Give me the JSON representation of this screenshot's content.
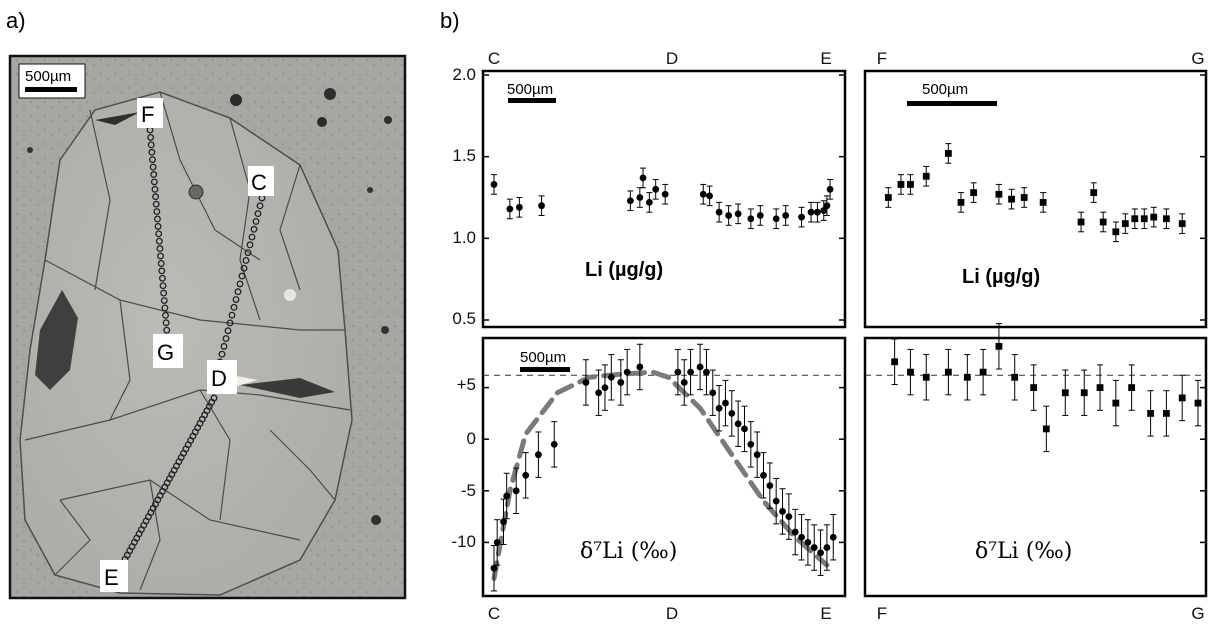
{
  "panel_a": {
    "label": "a)",
    "scale_bar": "500µm",
    "markers": {
      "F": "F",
      "C": "C",
      "G": "G",
      "D": "D",
      "E": "E"
    }
  },
  "panel_b": {
    "label": "b)",
    "scale_bars": {
      "top_left": "500µm",
      "top_right": "500µm",
      "bottom_left": "500µm"
    }
  },
  "chart_data": [
    {
      "type": "scatter",
      "panel": "top-left",
      "inner_label": "Li (µg/g)",
      "xticks": [
        "C",
        "D",
        "E"
      ],
      "ylim": [
        0.5,
        2.0
      ],
      "yticks": [
        "2.0",
        "1.5",
        "1.0",
        "0.5"
      ],
      "x": [
        0.0,
        0.05,
        0.08,
        0.15,
        0.43,
        0.46,
        0.47,
        0.49,
        0.51,
        0.54,
        0.66,
        0.68,
        0.71,
        0.74,
        0.77,
        0.81,
        0.84,
        0.89,
        0.92,
        0.97,
        1.0,
        1.02,
        1.04,
        1.05,
        1.06
      ],
      "y": [
        1.33,
        1.18,
        1.19,
        1.2,
        1.23,
        1.25,
        1.37,
        1.22,
        1.3,
        1.27,
        1.27,
        1.26,
        1.16,
        1.14,
        1.15,
        1.12,
        1.14,
        1.12,
        1.14,
        1.13,
        1.16,
        1.16,
        1.17,
        1.2,
        1.3
      ],
      "yerr": 0.06
    },
    {
      "type": "scatter",
      "panel": "top-right",
      "inner_label": "Li (µg/g)",
      "xticks": [
        "F",
        "G"
      ],
      "ylim": [
        0.5,
        2.0
      ],
      "x": [
        0.02,
        0.06,
        0.09,
        0.14,
        0.21,
        0.25,
        0.29,
        0.37,
        0.41,
        0.45,
        0.51,
        0.63,
        0.67,
        0.7,
        0.74,
        0.77,
        0.8,
        0.83,
        0.86,
        0.9,
        0.95
      ],
      "y": [
        1.25,
        1.33,
        1.33,
        1.38,
        1.52,
        1.22,
        1.28,
        1.27,
        1.24,
        1.25,
        1.22,
        1.1,
        1.28,
        1.1,
        1.04,
        1.09,
        1.12,
        1.12,
        1.13,
        1.12,
        1.09
      ],
      "yerr": 0.06
    },
    {
      "type": "scatter",
      "panel": "bottom-left",
      "inner_label": "δ⁷Li (‰)",
      "xticks": [
        "C",
        "D",
        "E"
      ],
      "ylim": [
        -15,
        10
      ],
      "yticks": [
        "+5",
        "0",
        "-5",
        "-10"
      ],
      "reference_line": 6.2,
      "fit_curve": [
        [
          0.0,
          -13.5
        ],
        [
          0.05,
          -5
        ],
        [
          0.1,
          0.5
        ],
        [
          0.2,
          4.5
        ],
        [
          0.3,
          6
        ],
        [
          0.4,
          6.3
        ],
        [
          0.5,
          6.5
        ],
        [
          0.55,
          6.0
        ],
        [
          0.65,
          3.0
        ],
        [
          0.75,
          -1.5
        ],
        [
          0.85,
          -6.0
        ],
        [
          0.95,
          -9.5
        ],
        [
          1.05,
          -12.2
        ]
      ],
      "x": [
        0.0,
        0.01,
        0.03,
        0.04,
        0.07,
        0.1,
        0.14,
        0.19,
        0.29,
        0.33,
        0.35,
        0.37,
        0.4,
        0.42,
        0.46,
        0.58,
        0.6,
        0.62,
        0.65,
        0.67,
        0.69,
        0.71,
        0.73,
        0.75,
        0.77,
        0.79,
        0.81,
        0.83,
        0.85,
        0.87,
        0.89,
        0.91,
        0.93,
        0.95,
        0.97,
        0.99,
        1.01,
        1.03,
        1.05,
        1.07
      ],
      "y": [
        -12.5,
        -10.0,
        -8.0,
        -5.5,
        -5.0,
        -3.5,
        -1.5,
        -0.5,
        5.5,
        4.5,
        5.0,
        6.0,
        5.5,
        6.5,
        7.0,
        6.5,
        5.5,
        6.5,
        7.0,
        6.5,
        4.5,
        3.0,
        3.5,
        2.5,
        1.5,
        1.0,
        -0.5,
        -1.5,
        -3.5,
        -4.5,
        -6.0,
        -7.0,
        -7.5,
        -9.0,
        -9.5,
        -10.0,
        -10.5,
        -11.0,
        -10.5,
        -9.5
      ],
      "yerr": 2.2
    },
    {
      "type": "scatter",
      "panel": "bottom-right",
      "inner_label": "δ⁷Li (‰)",
      "xticks": [
        "F",
        "G"
      ],
      "ylim": [
        -15,
        10
      ],
      "reference_line": 6.2,
      "x": [
        0.04,
        0.09,
        0.14,
        0.21,
        0.27,
        0.32,
        0.37,
        0.42,
        0.48,
        0.52,
        0.58,
        0.64,
        0.69,
        0.74,
        0.79,
        0.85,
        0.9,
        0.95,
        1.0
      ],
      "y": [
        7.5,
        6.5,
        6.0,
        6.5,
        6.0,
        6.5,
        9.0,
        6.0,
        5.0,
        1.0,
        4.5,
        4.5,
        5.0,
        3.5,
        5.0,
        2.5,
        2.5,
        4.0,
        3.5
      ],
      "yerr": 2.2
    }
  ]
}
